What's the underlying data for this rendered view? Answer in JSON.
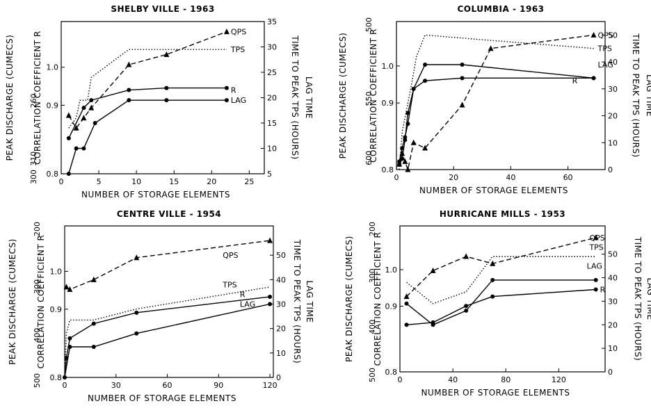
{
  "chart_data": [
    {
      "type": "line",
      "title": "SHELBY VILLE - 1963",
      "xlabel": "NUMBER OF STORAGE ELEMENTS",
      "ylabel_peak": "PEAK DISCHARGE (CUMECS)",
      "ylabel_corr": "CORRELATION COEFFICIENT R",
      "ylabel_right": [
        "TIME TO PEAK TPS (HOURS)",
        "LAG TIME"
      ],
      "xlim": [
        0,
        27
      ],
      "xticks": [
        "0",
        "5",
        "10",
        "15",
        "20",
        "25"
      ],
      "peak_ticks": [
        "260",
        "300",
        "310"
      ],
      "corr_ticks": [
        "0.8",
        "0.9",
        "1.0"
      ],
      "right_ylim": [
        5,
        35
      ],
      "right_ticks": [
        "5",
        "10",
        "15",
        "20",
        "25",
        "30",
        "35"
      ],
      "series": [
        {
          "name": "QPS",
          "style": "dashed",
          "marker": "triangle",
          "label_at": [
            22,
            33
          ],
          "points": [
            [
              1,
              16.5
            ],
            [
              2,
              14
            ],
            [
              3,
              16
            ],
            [
              4,
              18
            ],
            [
              9,
              26.5
            ],
            [
              14,
              28.5
            ],
            [
              22,
              33
            ]
          ]
        },
        {
          "name": "TPS",
          "style": "dotted",
          "marker": "none",
          "label_at": [
            22,
            29.5
          ],
          "points": [
            [
              1,
              14
            ],
            [
              2,
              16
            ],
            [
              2.5,
              19.5
            ],
            [
              3.5,
              19.5
            ],
            [
              4,
              24
            ],
            [
              9,
              29.5
            ],
            [
              14,
              29.5
            ],
            [
              22,
              29.5
            ]
          ]
        },
        {
          "name": "R",
          "style": "solid",
          "marker": "dot",
          "label_at": [
            22,
            21.5
          ],
          "points": [
            [
              1,
              12
            ],
            [
              3,
              18
            ],
            [
              4,
              19.5
            ],
            [
              9,
              21.5
            ],
            [
              14,
              21.9
            ],
            [
              22,
              21.9
            ]
          ]
        },
        {
          "name": "LAG",
          "style": "solid",
          "marker": "dot",
          "label_at": [
            22,
            19.5
          ],
          "points": [
            [
              1,
              5
            ],
            [
              2,
              10
            ],
            [
              3,
              10
            ],
            [
              4.5,
              15
            ],
            [
              9,
              19.5
            ],
            [
              14,
              19.5
            ],
            [
              22,
              19.5
            ]
          ]
        }
      ]
    },
    {
      "type": "line",
      "title": "COLUMBIA - 1963",
      "xlabel": "NUMBER OF STORAGE ELEMENTS",
      "ylabel_peak": "PEAK DISCHARGE (CUMECS)",
      "ylabel_corr": "CORRELATION COEFFICIENT R",
      "ylabel_right": [
        "TIME TO PEAK TPS (HOURS)",
        "LAG TIME"
      ],
      "xlim": [
        0,
        73
      ],
      "xticks": [
        "0",
        "20",
        "40",
        "60"
      ],
      "peak_ticks": [
        "500",
        "550",
        "600"
      ],
      "corr_ticks": [
        "0.8",
        "0.9",
        "1.0"
      ],
      "right_ylim": [
        0,
        55
      ],
      "right_ticks": [
        "0",
        "10",
        "20",
        "30",
        "40",
        "50"
      ],
      "series": [
        {
          "name": "QPS",
          "style": "dashed",
          "marker": "triangle",
          "label_at": [
            69,
            50
          ],
          "points": [
            [
              1,
              2
            ],
            [
              2,
              6
            ],
            [
              3,
              3
            ],
            [
              4,
              0
            ],
            [
              6,
              10
            ],
            [
              10,
              8
            ],
            [
              23,
              24
            ],
            [
              33,
              45
            ],
            [
              69,
              50
            ]
          ]
        },
        {
          "name": "TPS",
          "style": "dotted",
          "marker": "none",
          "label_at": [
            69,
            45
          ],
          "points": [
            [
              1,
              0
            ],
            [
              2,
              14
            ],
            [
              5,
              30
            ],
            [
              7,
              42
            ],
            [
              10,
              50
            ],
            [
              33,
              48
            ],
            [
              69,
              45
            ]
          ]
        },
        {
          "name": "LAG",
          "style": "solid",
          "marker": "dot",
          "label_at": [
            69,
            39
          ],
          "points": [
            [
              1,
              3
            ],
            [
              2,
              8
            ],
            [
              3,
              12
            ],
            [
              4,
              17
            ],
            [
              6,
              30
            ],
            [
              10,
              39
            ],
            [
              23,
              39
            ],
            [
              69,
              34
            ]
          ]
        },
        {
          "name": "R",
          "style": "solid",
          "marker": "dot",
          "label_at": [
            60,
            33
          ],
          "points": [
            [
              1,
              2
            ],
            [
              2,
              4
            ],
            [
              3,
              11
            ],
            [
              4,
              21
            ],
            [
              6,
              30
            ],
            [
              10,
              33
            ],
            [
              23,
              34
            ],
            [
              69,
              34
            ]
          ]
        }
      ]
    },
    {
      "type": "line",
      "title": "CENTRE VILLE - 1954",
      "xlabel": "NUMBER OF STORAGE ELEMENTS",
      "ylabel_peak": "PEAK DISCHARGE (CUMECS)",
      "ylabel_corr": "CORRELATION COEFFICIENT R",
      "ylabel_right": [
        "TIME TO PEAK TPS (HOURS)",
        "LAG TIME"
      ],
      "xlim": [
        0,
        122
      ],
      "xticks": [
        "0",
        "30",
        "60",
        "90",
        "120"
      ],
      "peak_ticks": [
        "200",
        "300",
        "400",
        "500"
      ],
      "corr_ticks": [
        "0.8",
        "0.9",
        "1.0"
      ],
      "right_ylim": [
        0,
        62
      ],
      "right_ticks": [
        "0",
        "10",
        "20",
        "30",
        "40",
        "50"
      ],
      "series": [
        {
          "name": "QPS",
          "style": "dashed",
          "marker": "triangle",
          "label_at": [
            90,
            50
          ],
          "points": [
            [
              1,
              37
            ],
            [
              3,
              36
            ],
            [
              17,
              40
            ],
            [
              42,
              49
            ],
            [
              120,
              56
            ]
          ]
        },
        {
          "name": "TPS",
          "style": "dotted",
          "marker": "none",
          "label_at": [
            90,
            38
          ],
          "points": [
            [
              0,
              0
            ],
            [
              1,
              18
            ],
            [
              3,
              23.5
            ],
            [
              17,
              23.5
            ],
            [
              42,
              28
            ],
            [
              120,
              37
            ]
          ]
        },
        {
          "name": "R",
          "style": "solid",
          "marker": "dot",
          "label_at": [
            100,
            34
          ],
          "points": [
            [
              0,
              0
            ],
            [
              1,
              8
            ],
            [
              3,
              16
            ],
            [
              17,
              22
            ],
            [
              42,
              26.5
            ],
            [
              120,
              33
            ]
          ]
        },
        {
          "name": "LAG",
          "style": "solid",
          "marker": "dot",
          "label_at": [
            100,
            30
          ],
          "points": [
            [
              0,
              0
            ],
            [
              3,
              12.5
            ],
            [
              17,
              12.5
            ],
            [
              42,
              18
            ],
            [
              120,
              30
            ]
          ]
        }
      ]
    },
    {
      "type": "line",
      "title": "HURRICANE MILLS - 1953",
      "xlabel": "NUMBER OF STORAGE ELEMENTS",
      "ylabel_peak": "PEAK DISCHARGE (CUMECS)",
      "ylabel_corr": "CORRELATION COEFFICIENT R",
      "ylabel_right": [
        "TIME TO PEAK TPS (HOURS)",
        "LAG TIME"
      ],
      "xlim": [
        0,
        155
      ],
      "xticks": [
        "0",
        "40",
        "80",
        "120"
      ],
      "peak_ticks": [
        "200",
        "300",
        "400",
        "500"
      ],
      "corr_ticks": [
        "0.8",
        "0.9",
        "1.0"
      ],
      "right_ylim": [
        0,
        62
      ],
      "right_ticks": [
        "0",
        "10",
        "20",
        "30",
        "40",
        "50"
      ],
      "series": [
        {
          "name": "QPS",
          "style": "dashed",
          "marker": "triangle",
          "label_at": [
            140,
            57
          ],
          "points": [
            [
              5,
              32
            ],
            [
              25,
              43
            ],
            [
              50,
              49
            ],
            [
              70,
              46
            ],
            [
              148,
              57
            ]
          ]
        },
        {
          "name": "TPS",
          "style": "dotted",
          "marker": "none",
          "label_at": [
            140,
            53
          ],
          "points": [
            [
              5,
              38
            ],
            [
              25,
              29
            ],
            [
              50,
              34
            ],
            [
              70,
              49
            ],
            [
              148,
              49
            ]
          ]
        },
        {
          "name": "LAG",
          "style": "solid",
          "marker": "dot",
          "label_at": [
            138,
            45
          ],
          "points": [
            [
              5,
              29
            ],
            [
              25,
              20
            ],
            [
              50,
              26
            ],
            [
              70,
              39
            ],
            [
              148,
              39
            ]
          ]
        },
        {
          "name": "R",
          "style": "solid",
          "marker": "dot",
          "label_at": [
            148,
            35
          ],
          "points": [
            [
              5,
              20
            ],
            [
              25,
              21
            ],
            [
              50,
              28
            ],
            [
              70,
              32
            ],
            [
              148,
              35
            ]
          ]
        }
      ]
    }
  ]
}
